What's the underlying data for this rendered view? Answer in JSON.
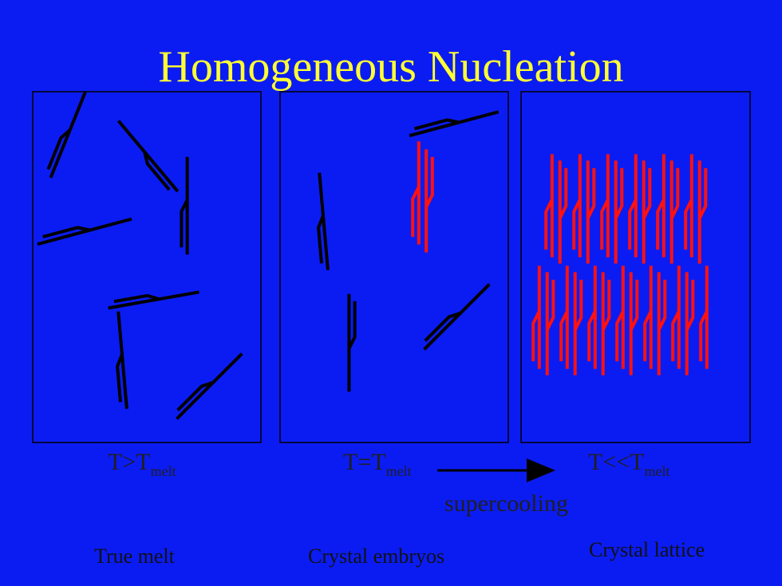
{
  "title": "Homogeneous Nucleation",
  "colors": {
    "background": "#0b1cf2",
    "title": "#ffff33",
    "molecule": "#000000",
    "crystal": "#ff1111"
  },
  "panels": [
    {
      "temp_main": "T>T",
      "temp_sub": "melt",
      "caption": "True melt"
    },
    {
      "temp_main": "T=T",
      "temp_sub": "melt",
      "caption": "Crystal embryos"
    },
    {
      "temp_main": "T<<T",
      "temp_sub": "melt",
      "caption": "Crystal lattice"
    }
  ],
  "process_label": "supercooling"
}
